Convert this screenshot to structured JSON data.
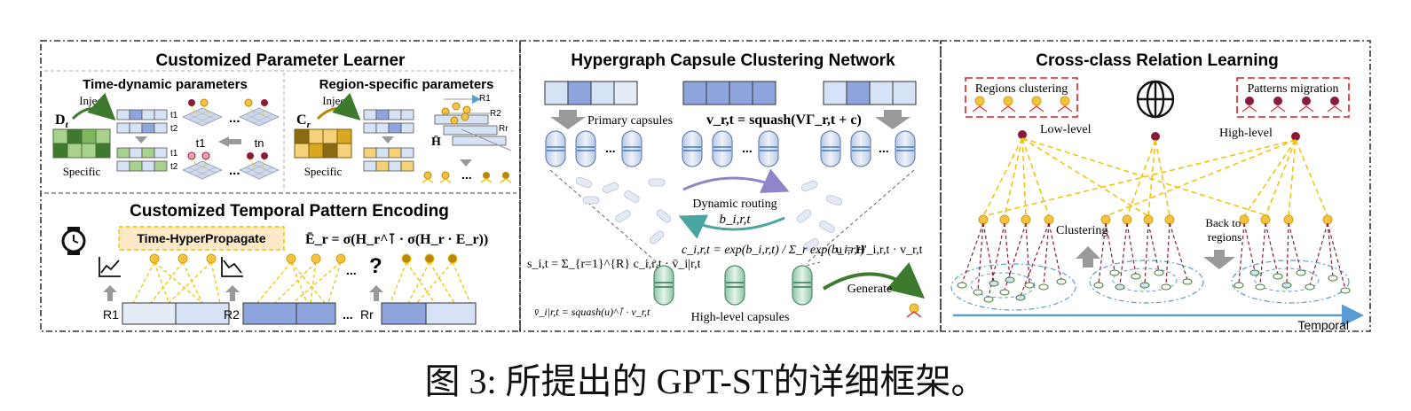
{
  "panel_left": {
    "title": "Customized Parameter Learner",
    "time_dynamic": {
      "title": "Time-dynamic parameters",
      "inject": "Inject",
      "matrix_label": "D",
      "matrix_sub": "t",
      "specific": "Specific",
      "t1": "t1",
      "t2": "t2",
      "t1_bottom": "t1",
      "tn_bottom": "tn",
      "ellipsis": "..."
    },
    "region_specific": {
      "title": "Region-specific parameters",
      "inject": "Inject",
      "matrix_label": "C",
      "matrix_sub": "r",
      "specific": "Specific",
      "r1": "R1",
      "r2": "R2",
      "rr": "Rr",
      "hbar": "H̄",
      "ellipsis": "..."
    },
    "temporal": {
      "title": "Customized Temporal Pattern Encoding",
      "propagate": "Time-HyperPropagate",
      "formula": "Ē_r = σ(H_r^⊺ · σ(H_r · E_r))",
      "r1": "R1",
      "r2": "R2",
      "rr": "Rr",
      "ellipsis": "...",
      "question": "?"
    }
  },
  "panel_mid": {
    "title": "Hypergraph Capsule Clustering Network",
    "primary_capsules": "Primary capsules",
    "v_formula": "v_r,t = squash(VΓ_r,t + c)",
    "dynamic_routing": "Dynamic routing",
    "b_label": "b_i,r,t",
    "c_formula": "c_i,r,t = exp(b_i,r,t) / Σ_r exp(b_i,r,t)",
    "s_formula": "s_i,t = Σ_{r=1}^{R} c_i,r,t · v̄_i|r,t",
    "u_formula": "u = H'_i,r,t · v_r,t",
    "vbar_formula": "v̄_i|r,t = squash(u)^⊺ · v_r,t",
    "high_level_capsules": "High-level capsules",
    "generate": "Generate",
    "ellipsis": "..."
  },
  "panel_right": {
    "title": "Cross-class Relation Learning",
    "regions_clustering": "Regions clustering",
    "patterns_migration": "Patterns  migration",
    "low_level": "Low-level",
    "high_level": "High-level",
    "clustering": "Clustering",
    "back_to_regions": "Back to regions",
    "temporal": "Temporal"
  },
  "caption": "图 3: 所提出的 GPT-ST的详细框架。",
  "colors": {
    "blue_fill": "#d6e2f5",
    "blue_dark": "#8ea6dd",
    "green_dark": "#3d7a2e",
    "green_light": "#a9d18e",
    "gold": "#b8860b",
    "yellow": "#f5c242",
    "maroon": "#8b1a3a",
    "dash_yellow": "#f2c200"
  }
}
